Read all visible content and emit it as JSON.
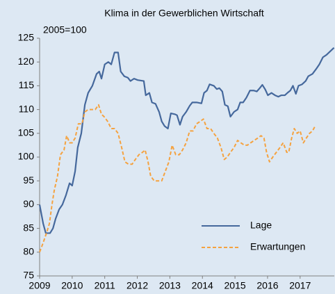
{
  "chart_data": {
    "type": "line",
    "title": "Klima in der Gewerblichen Wirtschaft",
    "subtitle": "2005=100",
    "xlim": [
      2009,
      2018.05
    ],
    "xticks": [
      2009,
      2010,
      2011,
      2012,
      2013,
      2014,
      2015,
      2016,
      2017
    ],
    "ylim": [
      75,
      125
    ],
    "yticks": [
      75,
      80,
      85,
      90,
      95,
      100,
      105,
      110,
      115,
      120,
      125
    ],
    "legend": "lower right",
    "series": [
      {
        "name": "Lage",
        "color": "#45689c",
        "dash": false,
        "x": [
          2009.0,
          2009.11,
          2009.19,
          2009.32,
          2009.41,
          2009.49,
          2009.6,
          2009.7,
          2009.81,
          2009.92,
          2010.0,
          2010.09,
          2010.17,
          2010.28,
          2010.39,
          2010.49,
          2010.62,
          2010.75,
          2010.83,
          2010.9,
          2011.0,
          2011.11,
          2011.2,
          2011.3,
          2011.41,
          2011.49,
          2011.6,
          2011.71,
          2011.79,
          2011.9,
          2012.01,
          2012.2,
          2012.26,
          2012.37,
          2012.45,
          2012.56,
          2012.67,
          2012.75,
          2012.84,
          2012.94,
          2013.03,
          2013.16,
          2013.22,
          2013.31,
          2013.39,
          2013.5,
          2013.61,
          2013.69,
          2013.82,
          2013.97,
          2014.05,
          2014.14,
          2014.22,
          2014.35,
          2014.44,
          2014.52,
          2014.61,
          2014.69,
          2014.78,
          2014.86,
          2014.97,
          2015.08,
          2015.16,
          2015.25,
          2015.35,
          2015.46,
          2015.57,
          2015.67,
          2015.76,
          2015.84,
          2015.93,
          2016.01,
          2016.12,
          2016.23,
          2016.33,
          2016.42,
          2016.53,
          2016.61,
          2016.7,
          2016.78,
          2016.87,
          2016.95,
          2017.06,
          2017.17,
          2017.25,
          2017.38,
          2017.49,
          2017.59,
          2017.7,
          2017.81,
          2018.04
        ],
        "values": [
          90,
          86,
          84,
          84,
          85,
          87,
          89,
          90,
          92,
          94.5,
          94,
          97,
          102,
          105,
          111,
          113.5,
          115,
          117.5,
          118,
          116.5,
          119.5,
          120,
          119.5,
          122,
          122,
          118,
          117,
          116.7,
          116,
          116.5,
          116.2,
          116,
          113,
          113.5,
          111.5,
          111.2,
          109.5,
          107.5,
          106.5,
          106,
          109.2,
          109,
          108.8,
          106.8,
          108.5,
          109.5,
          110.8,
          111.5,
          111.5,
          111.3,
          113.5,
          114,
          115.3,
          115,
          114.3,
          114.5,
          113.8,
          111,
          110.7,
          108.5,
          109.5,
          110,
          111.5,
          111.5,
          112.5,
          114,
          114,
          113.8,
          114.5,
          115.2,
          114.2,
          113,
          113.5,
          113,
          112.7,
          113,
          113,
          113.5,
          114,
          115,
          113.3,
          115,
          115.3,
          116,
          117,
          117.5,
          118.5,
          119.5,
          121,
          121.5,
          123
        ]
      },
      {
        "name": "Erwartungen",
        "color": "#f5a23f",
        "dash": true,
        "x": [
          2009.0,
          2009.11,
          2009.21,
          2009.3,
          2009.38,
          2009.45,
          2009.55,
          2009.64,
          2009.75,
          2009.83,
          2009.92,
          2010.0,
          2010.09,
          2010.19,
          2010.3,
          2010.39,
          2010.49,
          2010.6,
          2010.71,
          2010.81,
          2010.9,
          2010.98,
          2011.09,
          2011.2,
          2011.3,
          2011.41,
          2011.52,
          2011.62,
          2011.73,
          2011.84,
          2011.94,
          2012.05,
          2012.16,
          2012.24,
          2012.33,
          2012.41,
          2012.52,
          2012.65,
          2012.75,
          2012.86,
          2012.97,
          2013.07,
          2013.18,
          2013.29,
          2013.39,
          2013.5,
          2013.61,
          2013.71,
          2013.82,
          2013.93,
          2014.03,
          2014.14,
          2014.25,
          2014.35,
          2014.46,
          2014.57,
          2014.67,
          2014.76,
          2014.86,
          2014.97,
          2015.08,
          2015.18,
          2015.29,
          2015.38,
          2015.48,
          2015.59,
          2015.7,
          2015.8,
          2015.89,
          2015.97,
          2016.06,
          2016.16,
          2016.27,
          2016.38,
          2016.48,
          2016.59,
          2016.65,
          2016.74,
          2016.82,
          2016.91,
          2017.0,
          2017.1,
          2017.19,
          2017.29,
          2017.38,
          2017.46
        ],
        "values": [
          80,
          82,
          84,
          86,
          90,
          93,
          96,
          100.5,
          101.5,
          104.5,
          103,
          103,
          104,
          107,
          107,
          109.5,
          110,
          110,
          110,
          111,
          109,
          108.5,
          107.5,
          106,
          106,
          105,
          102,
          99,
          98.5,
          98.5,
          99.5,
          100.5,
          101,
          101.5,
          99,
          96,
          95,
          95,
          95,
          97,
          99,
          102.5,
          100.5,
          100.5,
          101.5,
          103,
          105.5,
          105.5,
          107,
          107.5,
          108,
          106,
          106,
          105,
          104,
          102,
          99.5,
          100,
          101,
          102,
          103.5,
          103,
          102.5,
          102.5,
          103,
          103.5,
          104,
          104.5,
          104,
          101,
          99,
          100,
          101,
          102,
          103,
          101,
          101,
          104,
          106,
          105,
          105.5,
          103,
          104,
          105,
          105.5,
          106.5
        ]
      }
    ]
  }
}
